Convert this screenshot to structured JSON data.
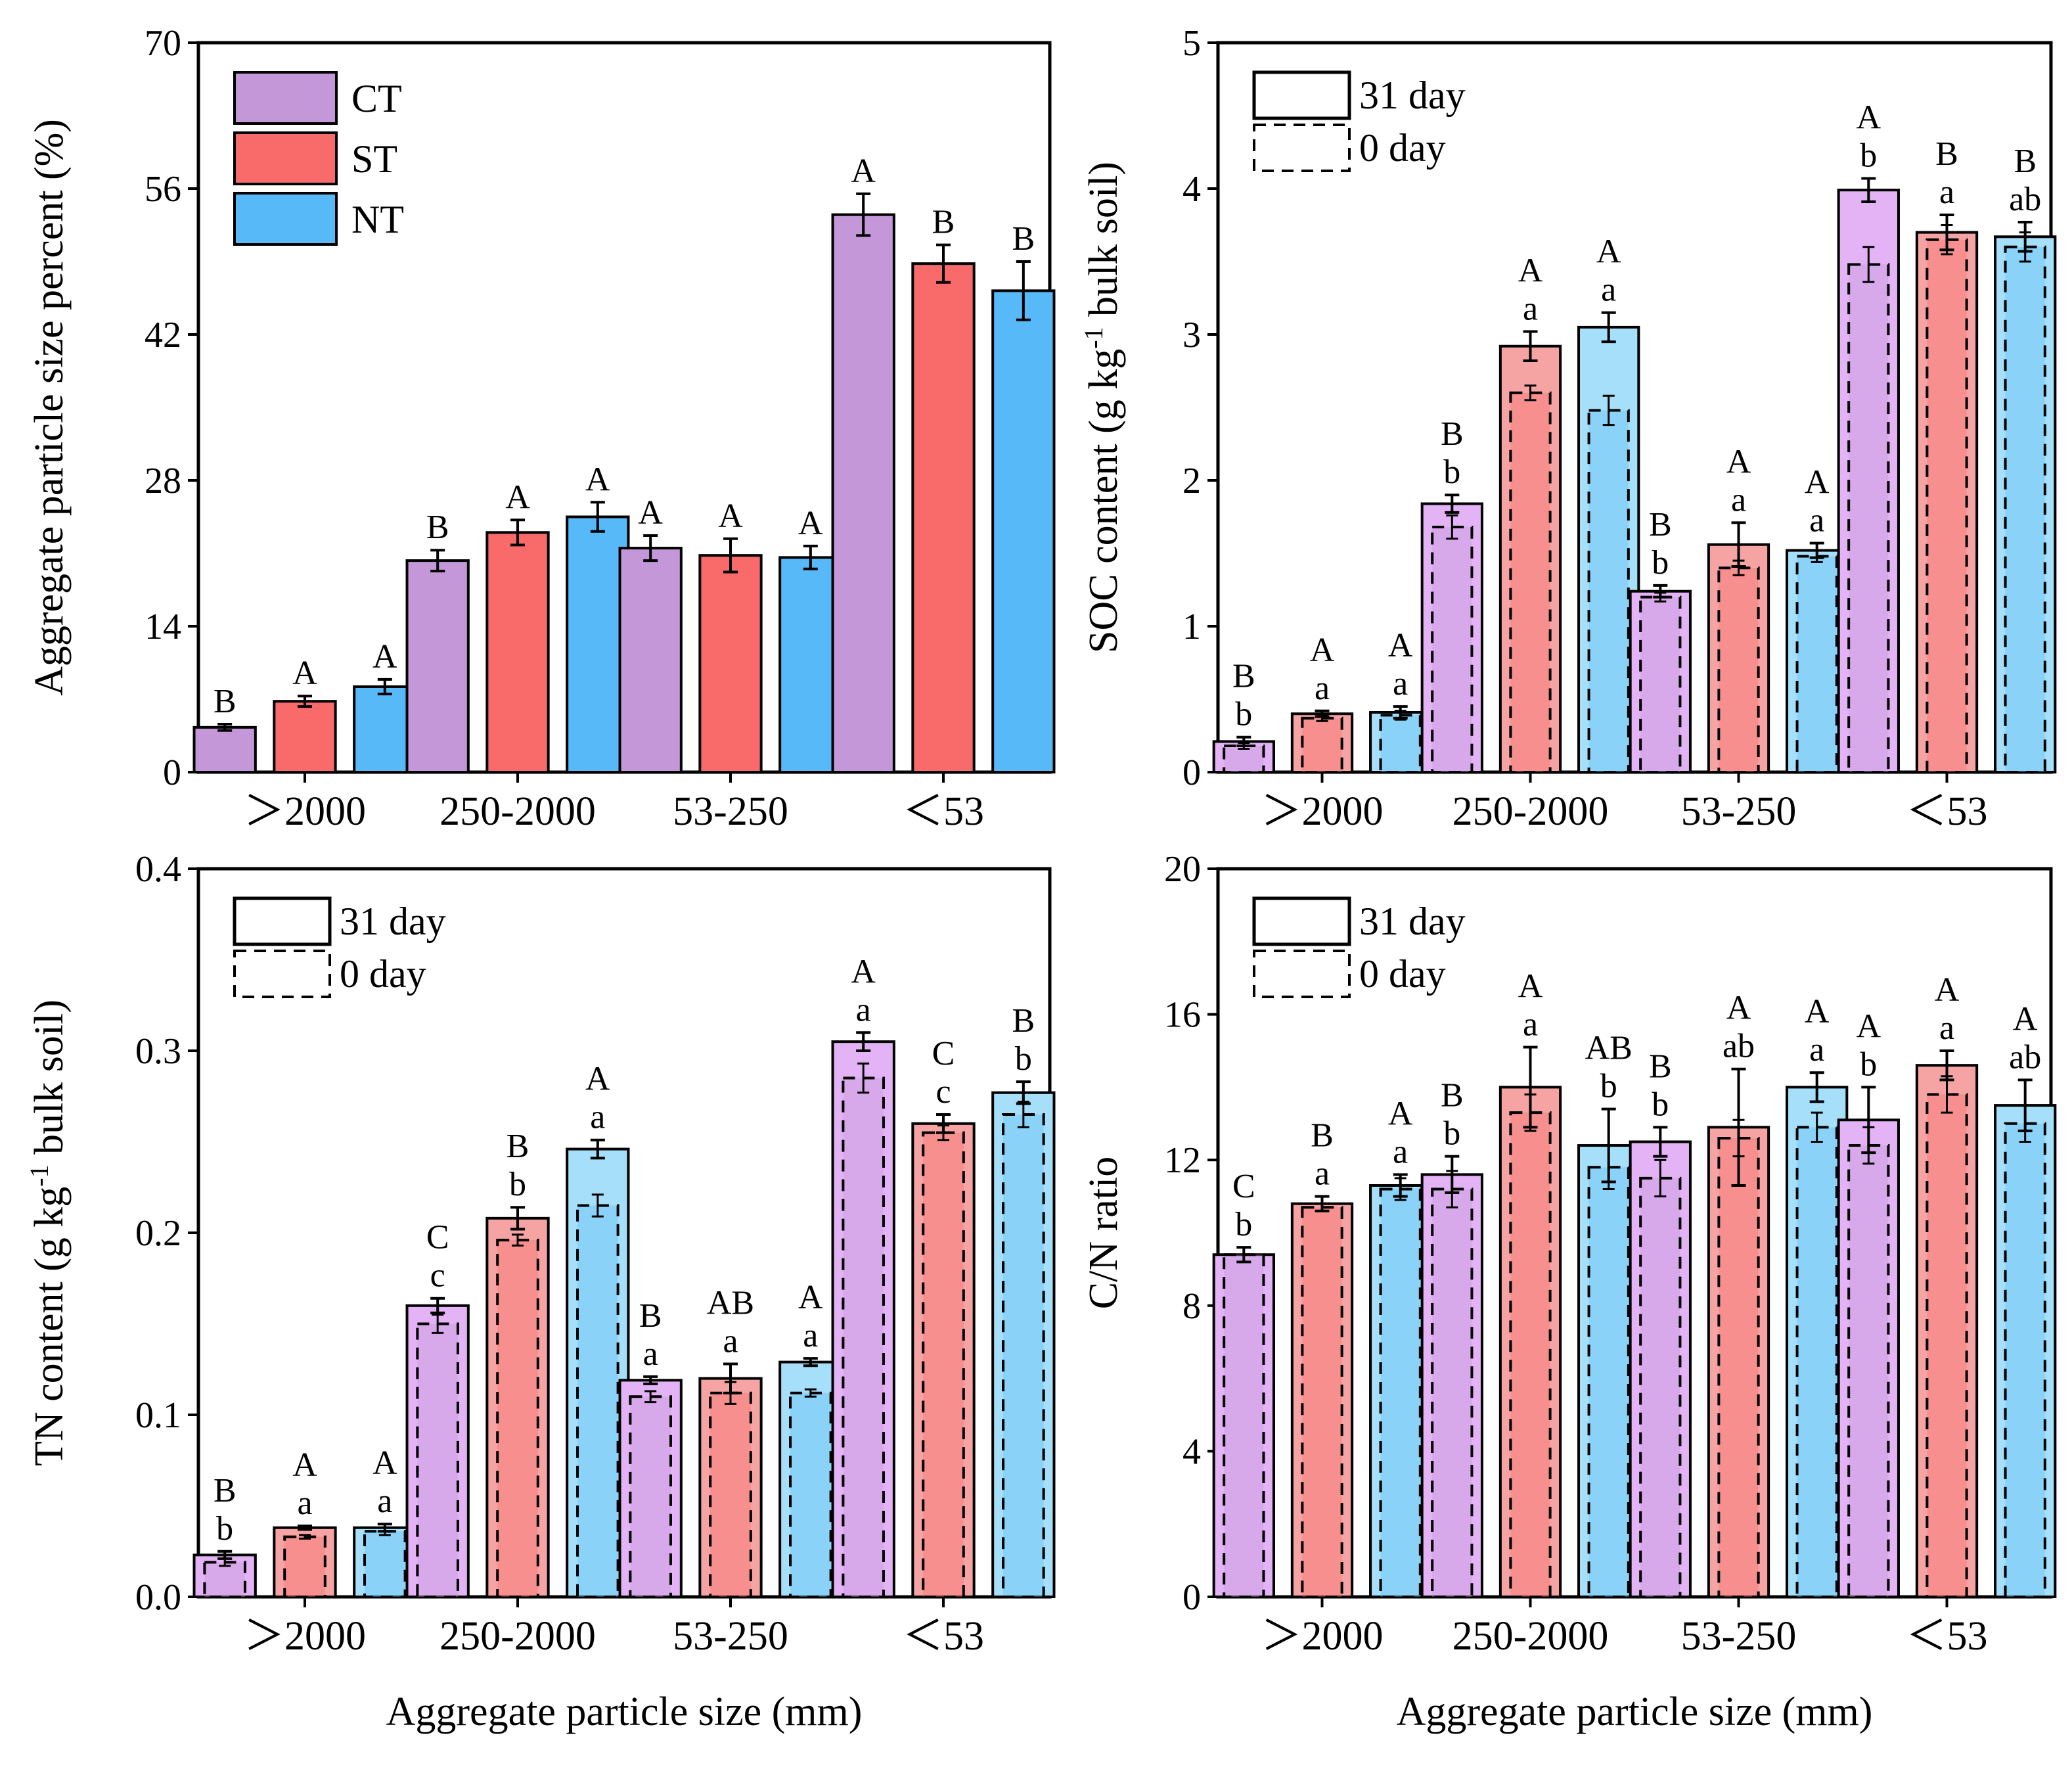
{
  "colors": {
    "CT": "#c397d8",
    "ST": "#f96b6b",
    "NT": "#57b9f7",
    "CT_light": "#e4b3f5",
    "ST_light": "#f6a3a3",
    "NT_light": "#a6dff9"
  },
  "chart_data": [
    {
      "id": "aggregate",
      "type": "bar",
      "ylabel": "Aggregate particle size percent (%)",
      "xlabel": "",
      "categories": [
        ">2000",
        "250-2000",
        "53-250",
        "<53"
      ],
      "ylim": [
        0,
        70
      ],
      "yticks": [
        0,
        14,
        28,
        42,
        56,
        70
      ],
      "legend": {
        "position": "top-left",
        "entries": [
          "CT",
          "ST",
          "NT"
        ]
      },
      "series": [
        {
          "name": "CT",
          "values": [
            4.3,
            20.3,
            21.5,
            53.5
          ],
          "errors": [
            0.3,
            1.0,
            1.2,
            2.0
          ],
          "upper_letters": [
            "B",
            "B",
            "A",
            "A"
          ],
          "lower_letters": [
            "",
            "",
            "",
            ""
          ]
        },
        {
          "name": "ST",
          "values": [
            6.8,
            23.0,
            20.8,
            48.8
          ],
          "errors": [
            0.5,
            1.2,
            1.6,
            1.8
          ],
          "upper_letters": [
            "A",
            "A",
            "A",
            "B"
          ],
          "lower_letters": [
            "",
            "",
            "",
            ""
          ]
        },
        {
          "name": "NT",
          "values": [
            8.2,
            24.5,
            20.6,
            46.2
          ],
          "errors": [
            0.7,
            1.4,
            1.1,
            2.8
          ],
          "upper_letters": [
            "A",
            "A",
            "A",
            "B"
          ],
          "lower_letters": [
            "",
            "",
            "",
            ""
          ]
        }
      ]
    },
    {
      "id": "soc",
      "type": "bar",
      "ylabel": "SOC content (g kg-1 bulk soil)",
      "xlabel": "",
      "categories": [
        ">2000",
        "250-2000",
        "53-250",
        "<53"
      ],
      "ylim": [
        0,
        5
      ],
      "yticks": [
        0,
        1,
        2,
        3,
        4,
        5
      ],
      "legend": {
        "position": "top-left",
        "entries": [
          "31 day",
          "0 day"
        ]
      },
      "series": [
        {
          "name": "CT",
          "values": [
            0.21,
            1.84,
            1.24,
            3.99
          ],
          "errors": [
            0.03,
            0.06,
            0.04,
            0.08
          ],
          "day0": [
            0.18,
            1.68,
            1.2,
            3.48
          ],
          "day0_err": [
            0.02,
            0.08,
            0.03,
            0.12
          ],
          "upper_letters": [
            "B",
            "B",
            "B",
            "A"
          ],
          "lower_letters": [
            "b",
            "b",
            "b",
            "b"
          ]
        },
        {
          "name": "ST",
          "values": [
            0.4,
            2.92,
            1.56,
            3.7
          ],
          "errors": [
            0.02,
            0.1,
            0.15,
            0.12
          ],
          "day0": [
            0.37,
            2.6,
            1.4,
            3.65
          ],
          "day0_err": [
            0.02,
            0.05,
            0.05,
            0.1
          ],
          "upper_letters": [
            "A",
            "A",
            "A",
            "B"
          ],
          "lower_letters": [
            "a",
            "a",
            "a",
            "a"
          ]
        },
        {
          "name": "NT",
          "values": [
            0.41,
            3.05,
            1.52,
            3.67
          ],
          "errors": [
            0.04,
            0.1,
            0.05,
            0.1
          ],
          "day0": [
            0.39,
            2.48,
            1.48,
            3.6
          ],
          "day0_err": [
            0.03,
            0.1,
            0.04,
            0.1
          ],
          "upper_letters": [
            "A",
            "A",
            "A",
            "B"
          ],
          "lower_letters": [
            "a",
            "a",
            "a",
            "ab"
          ]
        }
      ]
    },
    {
      "id": "tn",
      "type": "bar",
      "ylabel": "TN content (g kg-1 bulk soil)",
      "xlabel": "Aggregate particle size (mm)",
      "categories": [
        ">2000",
        "250-2000",
        "53-250",
        "<53"
      ],
      "ylim": [
        0,
        0.4
      ],
      "yticks": [
        "0.0",
        "0.1",
        "0.2",
        "0.3",
        "0.4"
      ],
      "legend": {
        "position": "top-left",
        "entries": [
          "31 day",
          "0 day"
        ]
      },
      "series": [
        {
          "name": "CT",
          "values": [
            0.023,
            0.16,
            0.119,
            0.305
          ],
          "errors": [
            0.002,
            0.004,
            0.002,
            0.005
          ],
          "day0": [
            0.019,
            0.15,
            0.11,
            0.285
          ],
          "day0_err": [
            0.002,
            0.005,
            0.003,
            0.008
          ],
          "upper_letters": [
            "B",
            "C",
            "B",
            "A"
          ],
          "lower_letters": [
            "b",
            "c",
            "a",
            "a"
          ]
        },
        {
          "name": "ST",
          "values": [
            0.038,
            0.208,
            0.12,
            0.26
          ],
          "errors": [
            0.001,
            0.006,
            0.008,
            0.005
          ],
          "day0": [
            0.033,
            0.196,
            0.112,
            0.255
          ],
          "day0_err": [
            0.001,
            0.003,
            0.006,
            0.004
          ],
          "upper_letters": [
            "A",
            "B",
            "AB",
            "C"
          ],
          "lower_letters": [
            "a",
            "b",
            "a",
            "c"
          ]
        },
        {
          "name": "NT",
          "values": [
            0.038,
            0.246,
            0.129,
            0.277
          ],
          "errors": [
            0.002,
            0.005,
            0.002,
            0.006
          ],
          "day0": [
            0.036,
            0.215,
            0.112,
            0.265
          ],
          "day0_err": [
            0.002,
            0.006,
            0.002,
            0.007
          ],
          "upper_letters": [
            "A",
            "A",
            "A",
            "B"
          ],
          "lower_letters": [
            "a",
            "a",
            "a",
            "b"
          ]
        }
      ]
    },
    {
      "id": "cn",
      "type": "bar",
      "ylabel": "C/N ratio",
      "xlabel": "Aggregate particle size (mm)",
      "categories": [
        ">2000",
        "250-2000",
        "53-250",
        "<53"
      ],
      "ylim": [
        0,
        20
      ],
      "yticks": [
        0,
        4,
        8,
        12,
        16,
        20
      ],
      "legend": {
        "position": "top-left",
        "entries": [
          "31 day",
          "0 day"
        ]
      },
      "series": [
        {
          "name": "CT",
          "values": [
            9.4,
            11.6,
            12.5,
            13.1
          ],
          "errors": [
            0.2,
            0.5,
            0.4,
            0.9
          ],
          "day0": [
            9.4,
            11.2,
            11.5,
            12.4
          ],
          "day0_err": [
            0.2,
            0.5,
            0.5,
            0.5
          ],
          "upper_letters": [
            "C",
            "B",
            "B",
            "A"
          ],
          "lower_letters": [
            "b",
            "b",
            "b",
            "b"
          ]
        },
        {
          "name": "ST",
          "values": [
            10.8,
            14.0,
            12.9,
            14.6
          ],
          "errors": [
            0.2,
            1.1,
            1.6,
            0.4
          ],
          "day0": [
            10.7,
            13.3,
            12.6,
            13.8
          ],
          "day0_err": [
            0.1,
            0.5,
            0.5,
            0.5
          ],
          "upper_letters": [
            "B",
            "A",
            "A",
            "A"
          ],
          "lower_letters": [
            "a",
            "a",
            "ab",
            "a"
          ]
        },
        {
          "name": "NT",
          "values": [
            11.3,
            12.4,
            14.0,
            13.5
          ],
          "errors": [
            0.3,
            1.0,
            0.4,
            0.7
          ],
          "day0": [
            11.2,
            11.8,
            12.9,
            13.0
          ],
          "day0_err": [
            0.3,
            0.6,
            0.4,
            0.5
          ],
          "upper_letters": [
            "A",
            "AB",
            "A",
            "A"
          ],
          "lower_letters": [
            "a",
            "b",
            "a",
            "ab"
          ]
        }
      ]
    }
  ]
}
